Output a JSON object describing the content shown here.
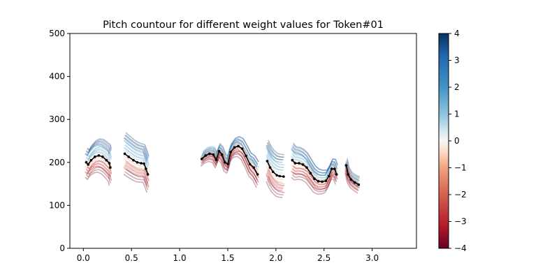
{
  "chart_data": {
    "type": "line",
    "title": "Pitch countour for different weight values for Token#01",
    "xlabel": "",
    "ylabel": "",
    "xlim": [
      -0.14,
      3.46
    ],
    "ylim": [
      0,
      500
    ],
    "x_ticks": [
      0.0,
      0.5,
      1.0,
      1.5,
      2.0,
      2.5,
      3.0
    ],
    "x_tick_labels": [
      "0.0",
      "0.5",
      "1.0",
      "1.5",
      "2.0",
      "2.5",
      "3.0"
    ],
    "y_ticks": [
      0,
      100,
      200,
      300,
      400,
      500
    ],
    "y_tick_labels": [
      "0",
      "100",
      "200",
      "300",
      "400",
      "500"
    ],
    "grid": false,
    "colorbar": {
      "colormap": "RdBu",
      "range": [
        -4,
        4
      ],
      "ticks": [
        4,
        3,
        2,
        1,
        0,
        -1,
        -2,
        -3,
        -4
      ],
      "tick_labels": [
        "4",
        "3",
        "2",
        "1",
        "0",
        "−1",
        "−2",
        "−3",
        "−4"
      ]
    },
    "reference_series": {
      "color": "#000000",
      "segments": [
        [
          [
            0.03,
            200
          ],
          [
            0.05,
            195
          ],
          [
            0.08,
            205
          ],
          [
            0.12,
            213
          ],
          [
            0.16,
            216
          ],
          [
            0.2,
            213
          ],
          [
            0.24,
            205
          ],
          [
            0.27,
            198
          ],
          [
            0.28,
            188
          ]
        ],
        [
          [
            0.43,
            220
          ],
          [
            0.47,
            213
          ],
          [
            0.52,
            205
          ],
          [
            0.56,
            200
          ],
          [
            0.6,
            198
          ],
          [
            0.63,
            197
          ],
          [
            0.65,
            185
          ],
          [
            0.67,
            172
          ]
        ],
        [
          [
            1.23,
            208
          ],
          [
            1.27,
            216
          ],
          [
            1.31,
            220
          ],
          [
            1.35,
            218
          ],
          [
            1.38,
            206
          ],
          [
            1.41,
            226
          ],
          [
            1.44,
            218
          ],
          [
            1.47,
            200
          ],
          [
            1.5,
            196
          ],
          [
            1.53,
            224
          ],
          [
            1.57,
            235
          ],
          [
            1.61,
            238
          ],
          [
            1.65,
            232
          ],
          [
            1.69,
            215
          ],
          [
            1.73,
            196
          ],
          [
            1.77,
            188
          ],
          [
            1.81,
            172
          ]
        ],
        [
          [
            1.91,
            203
          ],
          [
            1.94,
            188
          ],
          [
            1.97,
            178
          ],
          [
            2.01,
            170
          ],
          [
            2.04,
            168
          ],
          [
            2.08,
            167
          ]
        ],
        [
          [
            2.17,
            205
          ],
          [
            2.2,
            198
          ],
          [
            2.24,
            198
          ],
          [
            2.28,
            195
          ],
          [
            2.32,
            188
          ],
          [
            2.36,
            175
          ],
          [
            2.4,
            162
          ],
          [
            2.44,
            156
          ],
          [
            2.48,
            155
          ],
          [
            2.52,
            157
          ],
          [
            2.55,
            168
          ],
          [
            2.58,
            185
          ],
          [
            2.61,
            185
          ],
          [
            2.63,
            172
          ]
        ],
        [
          [
            2.73,
            193
          ],
          [
            2.75,
            172
          ],
          [
            2.78,
            160
          ],
          [
            2.82,
            153
          ],
          [
            2.86,
            148
          ]
        ]
      ]
    },
    "weight_series": [
      {
        "weight": 4,
        "offset": 48
      },
      {
        "weight": 3,
        "offset": 36
      },
      {
        "weight": 2,
        "offset": 24
      },
      {
        "weight": 1,
        "offset": 12
      },
      {
        "weight": 0,
        "offset": 0
      },
      {
        "weight": -1,
        "offset": -10
      },
      {
        "weight": -2,
        "offset": -20
      },
      {
        "weight": -3,
        "offset": -30
      },
      {
        "weight": -4,
        "offset": -40
      }
    ]
  }
}
